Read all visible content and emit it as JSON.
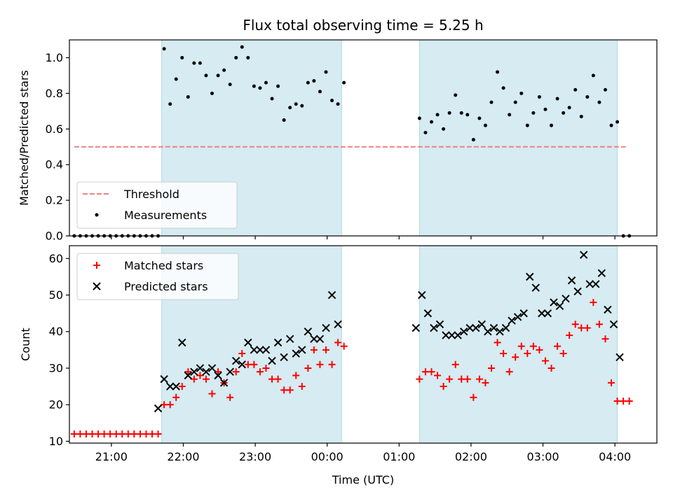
{
  "chart_data": [
    {
      "type": "scatter",
      "title": "Flux total observing time = 5.25 h",
      "ylabel": "Matched/Predicted stars",
      "xlabel": "",
      "ylim": [
        0,
        1.1
      ],
      "xlim": [
        "20:25",
        "04:35"
      ],
      "yticks": [
        0.0,
        0.2,
        0.4,
        0.6,
        0.8,
        1.0
      ],
      "ytick_labels": [
        "0.0",
        "0.2",
        "0.4",
        "0.6",
        "0.8",
        "1.0"
      ],
      "grid": false,
      "legend_position": "lower-left",
      "shaded_intervals": [
        [
          "21:42",
          "00:12"
        ],
        [
          "01:17",
          "04:02"
        ]
      ],
      "threshold": {
        "name": "Threshold",
        "value": 0.5,
        "x_start": "20:29",
        "x_end": "04:09",
        "color": "#f08080"
      },
      "series": [
        {
          "name": "Measurements",
          "color": "#000000",
          "points": [
            [
              "20:29",
              0
            ],
            [
              "20:34",
              0
            ],
            [
              "20:39",
              0
            ],
            [
              "20:44",
              0
            ],
            [
              "20:49",
              0
            ],
            [
              "20:54",
              0
            ],
            [
              "20:59",
              0
            ],
            [
              "21:04",
              0
            ],
            [
              "21:09",
              0
            ],
            [
              "21:14",
              0
            ],
            [
              "21:19",
              0
            ],
            [
              "21:24",
              0
            ],
            [
              "21:29",
              0
            ],
            [
              "21:34",
              0
            ],
            [
              "21:39",
              0
            ],
            [
              "21:44",
              1.05
            ],
            [
              "21:49",
              0.74
            ],
            [
              "21:54",
              0.88
            ],
            [
              "21:59",
              1.0
            ],
            [
              "22:04",
              0.78
            ],
            [
              "22:09",
              0.97
            ],
            [
              "22:14",
              0.97
            ],
            [
              "22:19",
              0.9
            ],
            [
              "22:24",
              0.8
            ],
            [
              "22:29",
              0.9
            ],
            [
              "22:34",
              0.93
            ],
            [
              "22:39",
              0.85
            ],
            [
              "22:44",
              1.0
            ],
            [
              "22:49",
              1.06
            ],
            [
              "22:54",
              1.0
            ],
            [
              "22:59",
              0.84
            ],
            [
              "23:04",
              0.83
            ],
            [
              "23:09",
              0.86
            ],
            [
              "23:14",
              0.77
            ],
            [
              "23:19",
              0.84
            ],
            [
              "23:24",
              0.65
            ],
            [
              "23:29",
              0.72
            ],
            [
              "23:34",
              0.74
            ],
            [
              "23:39",
              0.73
            ],
            [
              "23:44",
              0.86
            ],
            [
              "23:49",
              0.87
            ],
            [
              "23:54",
              0.81
            ],
            [
              "23:59",
              0.92
            ],
            [
              "00:04",
              0.76
            ],
            [
              "00:09",
              0.74
            ],
            [
              "00:14",
              0.86
            ],
            [
              "01:17",
              0.66
            ],
            [
              "01:22",
              0.58
            ],
            [
              "01:27",
              0.64
            ],
            [
              "01:32",
              0.68
            ],
            [
              "01:37",
              0.6
            ],
            [
              "01:42",
              0.69
            ],
            [
              "01:47",
              0.79
            ],
            [
              "01:52",
              0.69
            ],
            [
              "01:57",
              0.68
            ],
            [
              "02:02",
              0.54
            ],
            [
              "02:07",
              0.66
            ],
            [
              "02:12",
              0.62
            ],
            [
              "02:17",
              0.75
            ],
            [
              "02:22",
              0.92
            ],
            [
              "02:27",
              0.83
            ],
            [
              "02:32",
              0.68
            ],
            [
              "02:37",
              0.75
            ],
            [
              "02:42",
              0.8
            ],
            [
              "02:47",
              0.62
            ],
            [
              "02:52",
              0.69
            ],
            [
              "02:57",
              0.78
            ],
            [
              "03:02",
              0.71
            ],
            [
              "03:07",
              0.62
            ],
            [
              "03:12",
              0.77
            ],
            [
              "03:17",
              0.69
            ],
            [
              "03:22",
              0.72
            ],
            [
              "03:27",
              0.82
            ],
            [
              "03:32",
              0.67
            ],
            [
              "03:37",
              0.78
            ],
            [
              "03:42",
              0.9
            ],
            [
              "03:47",
              0.75
            ],
            [
              "03:52",
              0.82
            ],
            [
              "03:57",
              0.62
            ],
            [
              "04:02",
              0.64
            ],
            [
              "04:07",
              0
            ],
            [
              "04:12",
              0
            ]
          ]
        }
      ]
    },
    {
      "type": "scatter",
      "title": "",
      "xlabel": "Time (UTC)",
      "ylabel": "Count",
      "ylim": [
        9.5,
        63.5
      ],
      "xlim": [
        "20:25",
        "04:35"
      ],
      "xticks": [
        "21:00",
        "22:00",
        "23:00",
        "00:00",
        "01:00",
        "02:00",
        "03:00",
        "04:00"
      ],
      "yticks": [
        10,
        20,
        30,
        40,
        50,
        60
      ],
      "ytick_labels": [
        "10",
        "20",
        "30",
        "40",
        "50",
        "60"
      ],
      "grid": false,
      "legend_position": "upper-left",
      "shaded_intervals": [
        [
          "21:42",
          "00:12"
        ],
        [
          "01:17",
          "04:02"
        ]
      ],
      "series": [
        {
          "name": "Matched stars",
          "marker": "plus",
          "color": "#ff0000",
          "points": [
            [
              "20:29",
              12
            ],
            [
              "20:34",
              12
            ],
            [
              "20:39",
              12
            ],
            [
              "20:44",
              12
            ],
            [
              "20:49",
              12
            ],
            [
              "20:54",
              12
            ],
            [
              "20:59",
              12
            ],
            [
              "21:04",
              12
            ],
            [
              "21:09",
              12
            ],
            [
              "21:14",
              12
            ],
            [
              "21:19",
              12
            ],
            [
              "21:24",
              12
            ],
            [
              "21:29",
              12
            ],
            [
              "21:34",
              12
            ],
            [
              "21:39",
              12
            ],
            [
              "21:44",
              20
            ],
            [
              "21:49",
              20
            ],
            [
              "21:54",
              22
            ],
            [
              "21:59",
              25
            ],
            [
              "22:04",
              29
            ],
            [
              "22:09",
              27
            ],
            [
              "22:14",
              28
            ],
            [
              "22:19",
              27
            ],
            [
              "22:24",
              23
            ],
            [
              "22:29",
              29
            ],
            [
              "22:34",
              26
            ],
            [
              "22:39",
              22
            ],
            [
              "22:44",
              29
            ],
            [
              "22:49",
              34
            ],
            [
              "22:54",
              31
            ],
            [
              "22:59",
              31
            ],
            [
              "23:04",
              29
            ],
            [
              "23:09",
              30
            ],
            [
              "23:14",
              27
            ],
            [
              "23:19",
              27
            ],
            [
              "23:24",
              24
            ],
            [
              "23:29",
              24
            ],
            [
              "23:34",
              28
            ],
            [
              "23:39",
              25
            ],
            [
              "23:44",
              30
            ],
            [
              "23:49",
              35
            ],
            [
              "23:54",
              31
            ],
            [
              "23:59",
              35
            ],
            [
              "00:04",
              31
            ],
            [
              "00:09",
              37
            ],
            [
              "00:14",
              36
            ],
            [
              "01:17",
              27
            ],
            [
              "01:22",
              29
            ],
            [
              "01:27",
              29
            ],
            [
              "01:32",
              28
            ],
            [
              "01:37",
              25
            ],
            [
              "01:42",
              27
            ],
            [
              "01:47",
              31
            ],
            [
              "01:52",
              27
            ],
            [
              "01:57",
              27
            ],
            [
              "02:02",
              22
            ],
            [
              "02:07",
              27
            ],
            [
              "02:12",
              26
            ],
            [
              "02:17",
              30
            ],
            [
              "02:22",
              37
            ],
            [
              "02:27",
              34
            ],
            [
              "02:32",
              29
            ],
            [
              "02:37",
              33
            ],
            [
              "02:42",
              36
            ],
            [
              "02:47",
              34
            ],
            [
              "02:52",
              36
            ],
            [
              "02:57",
              35
            ],
            [
              "03:02",
              32
            ],
            [
              "03:07",
              30
            ],
            [
              "03:12",
              36
            ],
            [
              "03:17",
              34
            ],
            [
              "03:22",
              39
            ],
            [
              "03:27",
              42
            ],
            [
              "03:32",
              41
            ],
            [
              "03:37",
              41
            ],
            [
              "03:42",
              48
            ],
            [
              "03:47",
              42
            ],
            [
              "03:52",
              38
            ],
            [
              "03:57",
              26
            ],
            [
              "04:02",
              21
            ],
            [
              "04:07",
              21
            ],
            [
              "04:12",
              21
            ]
          ]
        },
        {
          "name": "Predicted stars",
          "marker": "x",
          "color": "#000000",
          "points": [
            [
              "21:39",
              19
            ],
            [
              "21:44",
              27
            ],
            [
              "21:49",
              25
            ],
            [
              "21:54",
              25
            ],
            [
              "21:59",
              37
            ],
            [
              "22:04",
              28
            ],
            [
              "22:09",
              29
            ],
            [
              "22:14",
              30
            ],
            [
              "22:19",
              29
            ],
            [
              "22:24",
              30
            ],
            [
              "22:29",
              28
            ],
            [
              "22:34",
              26
            ],
            [
              "22:39",
              29
            ],
            [
              "22:44",
              32
            ],
            [
              "22:49",
              31
            ],
            [
              "22:54",
              37
            ],
            [
              "22:59",
              35
            ],
            [
              "23:04",
              35
            ],
            [
              "23:09",
              35
            ],
            [
              "23:14",
              32
            ],
            [
              "23:19",
              37
            ],
            [
              "23:24",
              33
            ],
            [
              "23:29",
              38
            ],
            [
              "23:34",
              34
            ],
            [
              "23:39",
              35
            ],
            [
              "23:44",
              40
            ],
            [
              "23:49",
              38
            ],
            [
              "23:54",
              38
            ],
            [
              "23:59",
              41
            ],
            [
              "00:04",
              50
            ],
            [
              "00:09",
              42
            ],
            [
              "01:14",
              41
            ],
            [
              "01:19",
              50
            ],
            [
              "01:24",
              45
            ],
            [
              "01:29",
              41
            ],
            [
              "01:34",
              42
            ],
            [
              "01:39",
              39
            ],
            [
              "01:44",
              39
            ],
            [
              "01:49",
              39
            ],
            [
              "01:54",
              40
            ],
            [
              "01:59",
              41
            ],
            [
              "02:04",
              41
            ],
            [
              "02:09",
              42
            ],
            [
              "02:14",
              40
            ],
            [
              "02:19",
              41
            ],
            [
              "02:24",
              40
            ],
            [
              "02:29",
              41
            ],
            [
              "02:34",
              43
            ],
            [
              "02:39",
              44
            ],
            [
              "02:44",
              45
            ],
            [
              "02:49",
              55
            ],
            [
              "02:54",
              52
            ],
            [
              "02:59",
              45
            ],
            [
              "03:04",
              45
            ],
            [
              "03:09",
              48
            ],
            [
              "03:14",
              47
            ],
            [
              "03:19",
              49
            ],
            [
              "03:24",
              54
            ],
            [
              "03:29",
              51
            ],
            [
              "03:34",
              61
            ],
            [
              "03:39",
              53
            ],
            [
              "03:44",
              53
            ],
            [
              "03:49",
              56
            ],
            [
              "03:54",
              46
            ],
            [
              "03:59",
              42
            ],
            [
              "04:04",
              33
            ]
          ]
        }
      ]
    }
  ]
}
